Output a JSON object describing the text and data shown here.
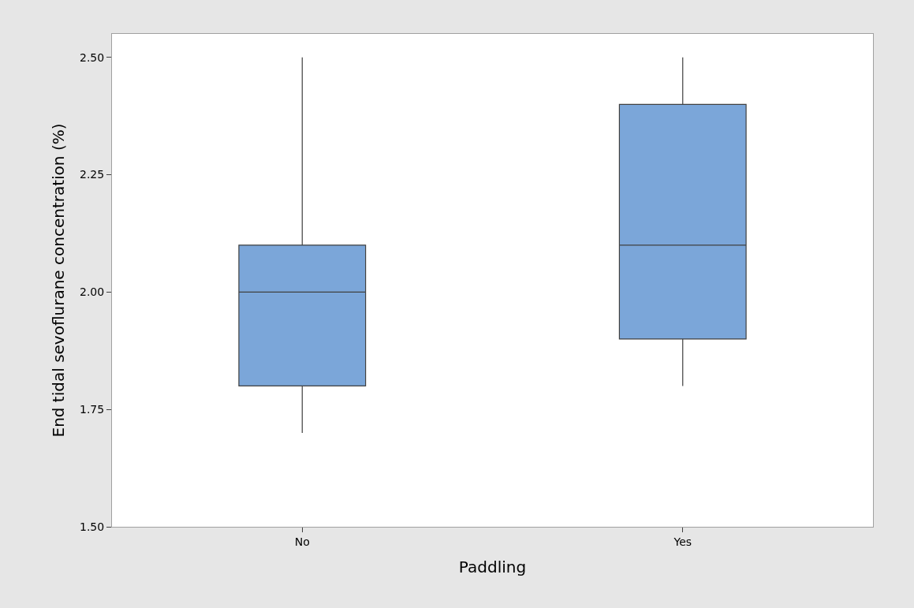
{
  "chart_data": {
    "type": "box",
    "xlabel": "Paddling",
    "ylabel": "End tidal sevoflurane concentration (%)",
    "categories": [
      "No",
      "Yes"
    ],
    "boxes": [
      {
        "low": 1.7,
        "q1": 1.8,
        "median": 2.0,
        "q3": 2.1,
        "high": 2.5
      },
      {
        "low": 1.8,
        "q1": 1.9,
        "median": 2.1,
        "q3": 2.4,
        "high": 2.5
      }
    ],
    "color": "#7ba6d9",
    "ylim": [
      1.5,
      2.55
    ],
    "yticks": [
      {
        "value": 1.5,
        "label": "1.50"
      },
      {
        "value": 1.75,
        "label": "1.75"
      },
      {
        "value": 2.0,
        "label": "2.00"
      },
      {
        "value": 2.25,
        "label": "2.25"
      },
      {
        "value": 2.5,
        "label": "2.50"
      }
    ],
    "grid": false
  }
}
